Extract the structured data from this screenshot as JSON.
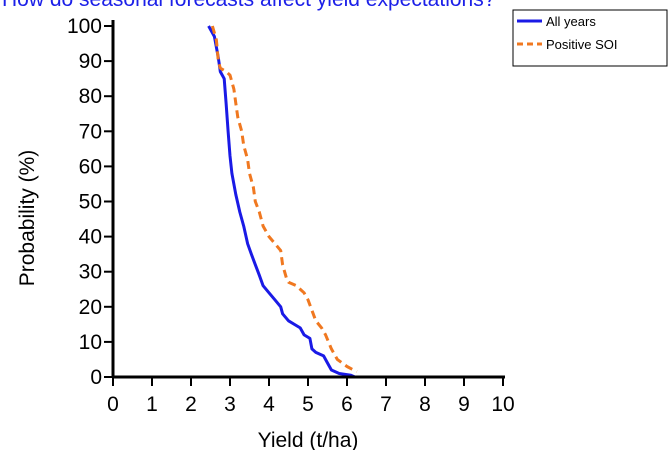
{
  "chart_data": {
    "type": "line",
    "title": "How do seasonal forecasts affect yield expectations?",
    "xlabel": "Yield (t/ha)",
    "ylabel": "Probability (%)",
    "xlim": [
      0,
      10
    ],
    "ylim": [
      0,
      100
    ],
    "xticks": [
      "0",
      "1",
      "2",
      "3",
      "4",
      "5",
      "6",
      "7",
      "8",
      "9",
      "10"
    ],
    "yticks": [
      "0",
      "10",
      "20",
      "30",
      "40",
      "50",
      "60",
      "70",
      "80",
      "90",
      "100"
    ],
    "grid": false,
    "legend_position": "top-right",
    "series": [
      {
        "name": "All years",
        "color": "#1a1ae6",
        "style": "solid",
        "points": [
          [
            2.45,
            100
          ],
          [
            2.6,
            97
          ],
          [
            2.7,
            91
          ],
          [
            2.75,
            87
          ],
          [
            2.85,
            85
          ],
          [
            2.9,
            78
          ],
          [
            2.95,
            70
          ],
          [
            3.0,
            63
          ],
          [
            3.05,
            58
          ],
          [
            3.15,
            52
          ],
          [
            3.25,
            47
          ],
          [
            3.35,
            43
          ],
          [
            3.45,
            38
          ],
          [
            3.55,
            35
          ],
          [
            3.65,
            32
          ],
          [
            3.75,
            29
          ],
          [
            3.85,
            26
          ],
          [
            4.0,
            24
          ],
          [
            4.15,
            22
          ],
          [
            4.3,
            20
          ],
          [
            4.35,
            18
          ],
          [
            4.5,
            16
          ],
          [
            4.65,
            15
          ],
          [
            4.8,
            14
          ],
          [
            4.9,
            12
          ],
          [
            5.05,
            11
          ],
          [
            5.1,
            8
          ],
          [
            5.2,
            7
          ],
          [
            5.4,
            6
          ],
          [
            5.5,
            4
          ],
          [
            5.6,
            2
          ],
          [
            5.8,
            1
          ],
          [
            6.1,
            0.5
          ],
          [
            6.2,
            0
          ]
        ]
      },
      {
        "name": "Positive SOI",
        "color": "#f07820",
        "style": "dashed",
        "points": [
          [
            2.55,
            100
          ],
          [
            2.65,
            96
          ],
          [
            2.7,
            90
          ],
          [
            2.75,
            88
          ],
          [
            2.9,
            87
          ],
          [
            3.0,
            86
          ],
          [
            3.1,
            82
          ],
          [
            3.15,
            78
          ],
          [
            3.2,
            74
          ],
          [
            3.3,
            70
          ],
          [
            3.35,
            66
          ],
          [
            3.45,
            62
          ],
          [
            3.5,
            58
          ],
          [
            3.6,
            54
          ],
          [
            3.65,
            50
          ],
          [
            3.75,
            47
          ],
          [
            3.85,
            43
          ],
          [
            4.0,
            40
          ],
          [
            4.15,
            38
          ],
          [
            4.3,
            36
          ],
          [
            4.35,
            32
          ],
          [
            4.45,
            28
          ],
          [
            4.5,
            27
          ],
          [
            4.7,
            26
          ],
          [
            4.9,
            24
          ],
          [
            5.0,
            22
          ],
          [
            5.1,
            19
          ],
          [
            5.2,
            16
          ],
          [
            5.35,
            14
          ],
          [
            5.45,
            12
          ],
          [
            5.6,
            8
          ],
          [
            5.75,
            5
          ],
          [
            6.0,
            3
          ],
          [
            6.25,
            1.5
          ]
        ]
      }
    ]
  }
}
